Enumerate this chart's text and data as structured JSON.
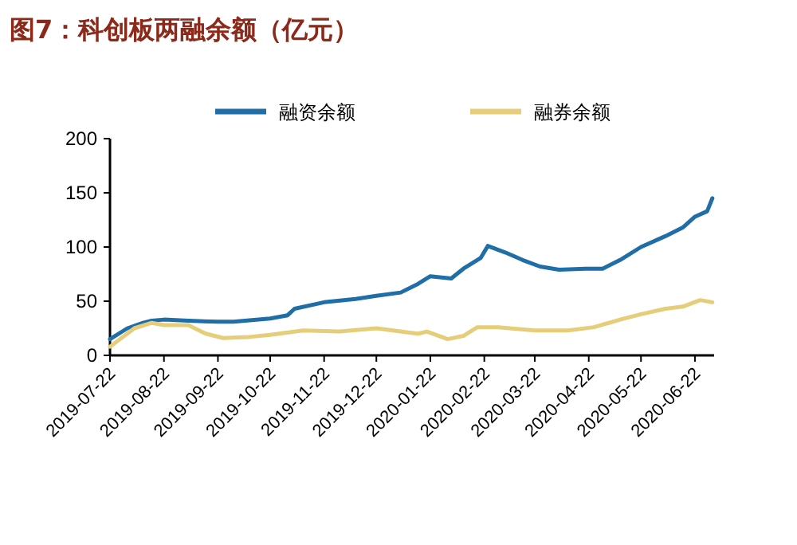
{
  "chart_data": {
    "type": "line",
    "title": "图7：科创板两融余额（亿元）",
    "xlim": [
      "2019-07-22",
      "2020-07-03"
    ],
    "xticks": [
      "2019-07-22",
      "2019-08-22",
      "2019-09-22",
      "2019-10-22",
      "2019-11-22",
      "2019-12-22",
      "2020-01-22",
      "2020-02-22",
      "2020-03-22",
      "2020-04-22",
      "2020-05-22",
      "2020-06-22"
    ],
    "ylim": [
      0,
      200
    ],
    "yticks": [
      0,
      50,
      100,
      150,
      200
    ],
    "grid": false,
    "legend": "top",
    "marker": "none",
    "line_style": "solid",
    "series": [
      {
        "name": "融资余额",
        "color": "#1f6ea8",
        "x": [
          "2019-07-22",
          "2019-08-01",
          "2019-08-10",
          "2019-08-15",
          "2019-08-22",
          "2019-09-05",
          "2019-09-22",
          "2019-10-01",
          "2019-10-22",
          "2019-11-01",
          "2019-11-05",
          "2019-11-22",
          "2019-12-10",
          "2019-12-22",
          "2020-01-05",
          "2020-01-15",
          "2020-01-22",
          "2020-02-03",
          "2020-02-10",
          "2020-02-20",
          "2020-02-24",
          "2020-03-05",
          "2020-03-15",
          "2020-03-25",
          "2020-04-05",
          "2020-04-20",
          "2020-04-30",
          "2020-05-10",
          "2020-05-22",
          "2020-06-05",
          "2020-06-15",
          "2020-06-22",
          "2020-06-29",
          "2020-07-02"
        ],
        "values": [
          15,
          25,
          30,
          32,
          33,
          32,
          31,
          31,
          34,
          37,
          43,
          49,
          52,
          55,
          58,
          66,
          73,
          71,
          80,
          90,
          101,
          95,
          88,
          82,
          79,
          80,
          80,
          88,
          100,
          110,
          118,
          128,
          133,
          145
        ]
      },
      {
        "name": "融券余额",
        "color": "#e6cd7a",
        "x": [
          "2019-07-22",
          "2019-08-05",
          "2019-08-15",
          "2019-08-22",
          "2019-09-05",
          "2019-09-15",
          "2019-09-25",
          "2019-10-10",
          "2019-10-22",
          "2019-11-10",
          "2019-12-01",
          "2019-12-22",
          "2020-01-05",
          "2020-01-15",
          "2020-01-20",
          "2020-02-01",
          "2020-02-10",
          "2020-02-18",
          "2020-03-01",
          "2020-03-22",
          "2020-04-10",
          "2020-04-25",
          "2020-05-10",
          "2020-05-22",
          "2020-06-05",
          "2020-06-15",
          "2020-06-25",
          "2020-07-02"
        ],
        "values": [
          8,
          25,
          30,
          28,
          28,
          20,
          16,
          17,
          19,
          23,
          22,
          25,
          22,
          20,
          22,
          15,
          18,
          26,
          26,
          23,
          23,
          26,
          33,
          38,
          43,
          45,
          51,
          49
        ]
      }
    ]
  }
}
